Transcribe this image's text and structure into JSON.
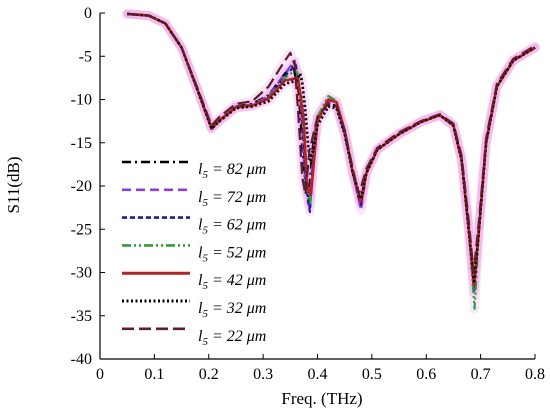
{
  "chart_data": {
    "type": "line",
    "title": "",
    "xlabel": "Freq. (THz)",
    "ylabel": "S11(dB)",
    "xlim": [
      0,
      0.8
    ],
    "ylim": [
      -40,
      0
    ],
    "xticks": [
      "0",
      "0.1",
      "0.2",
      "0.3",
      "0.4",
      "0.5",
      "0.6",
      "0.7",
      "0.8"
    ],
    "yticks": [
      "0",
      "-5",
      "-10",
      "-15",
      "-20",
      "-25",
      "-30",
      "-35",
      "-40"
    ],
    "grid": false,
    "legend_position": "left-middle",
    "series": [
      {
        "name": "l5 = 82 μm",
        "color": "#000000",
        "dash": "dashdot",
        "points": [
          [
            0.05,
            -0.1
          ],
          [
            0.09,
            -0.3
          ],
          [
            0.12,
            -1.2
          ],
          [
            0.15,
            -4.0
          ],
          [
            0.18,
            -9.0
          ],
          [
            0.205,
            -13.4
          ],
          [
            0.22,
            -12.5
          ],
          [
            0.25,
            -10.8
          ],
          [
            0.28,
            -10.5
          ],
          [
            0.31,
            -9.5
          ],
          [
            0.34,
            -7.0
          ],
          [
            0.355,
            -6.0
          ],
          [
            0.365,
            -9.0
          ],
          [
            0.375,
            -18.0
          ],
          [
            0.383,
            -22.0
          ],
          [
            0.39,
            -16.0
          ],
          [
            0.4,
            -12.0
          ],
          [
            0.42,
            -10.3
          ],
          [
            0.435,
            -10.8
          ],
          [
            0.45,
            -14.0
          ],
          [
            0.465,
            -18.5
          ],
          [
            0.478,
            -22.0
          ],
          [
            0.49,
            -18.5
          ],
          [
            0.51,
            -15.8
          ],
          [
            0.55,
            -14.0
          ],
          [
            0.59,
            -12.6
          ],
          [
            0.625,
            -11.8
          ],
          [
            0.65,
            -13.0
          ],
          [
            0.665,
            -17.0
          ],
          [
            0.678,
            -25.0
          ],
          [
            0.688,
            -32.0
          ],
          [
            0.697,
            -25.0
          ],
          [
            0.71,
            -15.0
          ],
          [
            0.73,
            -8.5
          ],
          [
            0.76,
            -5.5
          ],
          [
            0.8,
            -4.0
          ]
        ]
      },
      {
        "name": "l5 = 72 μm",
        "color": "#8a3fd6",
        "dash": "dash",
        "points": [
          [
            0.05,
            -0.1
          ],
          [
            0.09,
            -0.3
          ],
          [
            0.12,
            -1.2
          ],
          [
            0.15,
            -4.0
          ],
          [
            0.18,
            -9.0
          ],
          [
            0.205,
            -13.3
          ],
          [
            0.22,
            -12.4
          ],
          [
            0.25,
            -10.8
          ],
          [
            0.28,
            -10.6
          ],
          [
            0.31,
            -9.6
          ],
          [
            0.34,
            -7.0
          ],
          [
            0.358,
            -5.5
          ],
          [
            0.368,
            -9.5
          ],
          [
            0.377,
            -19.0
          ],
          [
            0.385,
            -22.5
          ],
          [
            0.392,
            -16.0
          ],
          [
            0.4,
            -12.0
          ],
          [
            0.42,
            -10.2
          ],
          [
            0.435,
            -10.6
          ],
          [
            0.45,
            -14.0
          ],
          [
            0.465,
            -18.5
          ],
          [
            0.48,
            -22.8
          ],
          [
            0.49,
            -18.5
          ],
          [
            0.51,
            -15.8
          ],
          [
            0.55,
            -14.0
          ],
          [
            0.59,
            -12.6
          ],
          [
            0.625,
            -11.8
          ],
          [
            0.65,
            -13.0
          ],
          [
            0.665,
            -17.0
          ],
          [
            0.678,
            -25.0
          ],
          [
            0.688,
            -32.5
          ],
          [
            0.697,
            -25.0
          ],
          [
            0.71,
            -15.0
          ],
          [
            0.73,
            -8.5
          ],
          [
            0.76,
            -5.5
          ],
          [
            0.8,
            -4.0
          ]
        ]
      },
      {
        "name": "l5 = 62 μm",
        "color": "#1c1c9c",
        "dash": "shortdash",
        "points": [
          [
            0.05,
            -0.1
          ],
          [
            0.09,
            -0.3
          ],
          [
            0.12,
            -1.2
          ],
          [
            0.15,
            -4.0
          ],
          [
            0.18,
            -9.0
          ],
          [
            0.205,
            -13.3
          ],
          [
            0.22,
            -12.4
          ],
          [
            0.25,
            -10.9
          ],
          [
            0.28,
            -10.7
          ],
          [
            0.31,
            -9.8
          ],
          [
            0.34,
            -7.3
          ],
          [
            0.36,
            -6.0
          ],
          [
            0.37,
            -10.0
          ],
          [
            0.378,
            -19.0
          ],
          [
            0.386,
            -23.0
          ],
          [
            0.393,
            -16.0
          ],
          [
            0.4,
            -12.0
          ],
          [
            0.42,
            -10.0
          ],
          [
            0.435,
            -10.4
          ],
          [
            0.45,
            -13.8
          ],
          [
            0.465,
            -18.5
          ],
          [
            0.48,
            -22.2
          ],
          [
            0.49,
            -18.5
          ],
          [
            0.51,
            -15.8
          ],
          [
            0.55,
            -14.0
          ],
          [
            0.59,
            -12.6
          ],
          [
            0.625,
            -11.8
          ],
          [
            0.65,
            -13.0
          ],
          [
            0.665,
            -17.0
          ],
          [
            0.678,
            -25.0
          ],
          [
            0.688,
            -32.0
          ],
          [
            0.697,
            -25.0
          ],
          [
            0.71,
            -15.0
          ],
          [
            0.73,
            -8.5
          ],
          [
            0.76,
            -5.5
          ],
          [
            0.8,
            -4.0
          ]
        ]
      },
      {
        "name": "l5 = 52 μm",
        "color": "#2e9e3a",
        "dash": "dashdotdot",
        "points": [
          [
            0.05,
            -0.1
          ],
          [
            0.09,
            -0.3
          ],
          [
            0.12,
            -1.2
          ],
          [
            0.15,
            -4.0
          ],
          [
            0.18,
            -9.0
          ],
          [
            0.205,
            -13.3
          ],
          [
            0.22,
            -12.4
          ],
          [
            0.25,
            -10.9
          ],
          [
            0.28,
            -10.7
          ],
          [
            0.31,
            -9.8
          ],
          [
            0.34,
            -7.5
          ],
          [
            0.362,
            -6.5
          ],
          [
            0.372,
            -10.5
          ],
          [
            0.38,
            -19.5
          ],
          [
            0.387,
            -22.0
          ],
          [
            0.394,
            -16.0
          ],
          [
            0.4,
            -12.0
          ],
          [
            0.42,
            -9.6
          ],
          [
            0.435,
            -10.2
          ],
          [
            0.45,
            -13.6
          ],
          [
            0.465,
            -18.5
          ],
          [
            0.48,
            -21.8
          ],
          [
            0.49,
            -18.5
          ],
          [
            0.51,
            -15.8
          ],
          [
            0.55,
            -14.0
          ],
          [
            0.59,
            -12.6
          ],
          [
            0.625,
            -11.8
          ],
          [
            0.65,
            -13.0
          ],
          [
            0.665,
            -17.0
          ],
          [
            0.678,
            -25.0
          ],
          [
            0.689,
            -34.2
          ],
          [
            0.697,
            -25.0
          ],
          [
            0.71,
            -15.0
          ],
          [
            0.73,
            -8.5
          ],
          [
            0.76,
            -5.5
          ],
          [
            0.8,
            -4.0
          ]
        ]
      },
      {
        "name": "l5 = 42 μm",
        "color": "#b22222",
        "dash": "solid",
        "points": [
          [
            0.05,
            -0.1
          ],
          [
            0.09,
            -0.3
          ],
          [
            0.12,
            -1.2
          ],
          [
            0.15,
            -4.0
          ],
          [
            0.18,
            -9.0
          ],
          [
            0.205,
            -13.3
          ],
          [
            0.22,
            -12.4
          ],
          [
            0.25,
            -10.9
          ],
          [
            0.28,
            -10.7
          ],
          [
            0.31,
            -9.9
          ],
          [
            0.34,
            -7.8
          ],
          [
            0.364,
            -7.5
          ],
          [
            0.374,
            -12.0
          ],
          [
            0.381,
            -20.0
          ],
          [
            0.388,
            -21.0
          ],
          [
            0.395,
            -16.0
          ],
          [
            0.4,
            -12.5
          ],
          [
            0.42,
            -10.0
          ],
          [
            0.435,
            -10.3
          ],
          [
            0.45,
            -13.6
          ],
          [
            0.465,
            -18.5
          ],
          [
            0.48,
            -21.8
          ],
          [
            0.49,
            -18.5
          ],
          [
            0.51,
            -15.8
          ],
          [
            0.55,
            -14.0
          ],
          [
            0.59,
            -12.6
          ],
          [
            0.625,
            -11.8
          ],
          [
            0.65,
            -13.0
          ],
          [
            0.665,
            -17.0
          ],
          [
            0.678,
            -25.0
          ],
          [
            0.688,
            -31.5
          ],
          [
            0.697,
            -25.0
          ],
          [
            0.71,
            -15.0
          ],
          [
            0.73,
            -8.5
          ],
          [
            0.76,
            -5.5
          ],
          [
            0.8,
            -4.0
          ]
        ]
      },
      {
        "name": "l5 = 32 μm",
        "color": "#000000",
        "dash": "dot",
        "points": [
          [
            0.05,
            -0.1
          ],
          [
            0.09,
            -0.3
          ],
          [
            0.12,
            -1.2
          ],
          [
            0.15,
            -4.0
          ],
          [
            0.18,
            -9.0
          ],
          [
            0.205,
            -13.4
          ],
          [
            0.22,
            -12.5
          ],
          [
            0.25,
            -11.0
          ],
          [
            0.28,
            -10.8
          ],
          [
            0.31,
            -10.2
          ],
          [
            0.34,
            -8.2
          ],
          [
            0.362,
            -7.8
          ],
          [
            0.368,
            -7.0
          ],
          [
            0.372,
            -8.0
          ],
          [
            0.378,
            -11.5
          ],
          [
            0.383,
            -15.5
          ],
          [
            0.387,
            -17.0
          ],
          [
            0.393,
            -15.5
          ],
          [
            0.4,
            -13.0
          ],
          [
            0.42,
            -10.8
          ],
          [
            0.435,
            -11.0
          ],
          [
            0.45,
            -14.0
          ],
          [
            0.465,
            -18.5
          ],
          [
            0.48,
            -21.5
          ],
          [
            0.49,
            -18.5
          ],
          [
            0.51,
            -15.8
          ],
          [
            0.55,
            -14.0
          ],
          [
            0.59,
            -12.6
          ],
          [
            0.625,
            -11.8
          ],
          [
            0.65,
            -13.0
          ],
          [
            0.665,
            -17.0
          ],
          [
            0.678,
            -25.0
          ],
          [
            0.688,
            -31.0
          ],
          [
            0.697,
            -25.0
          ],
          [
            0.71,
            -15.0
          ],
          [
            0.73,
            -8.5
          ],
          [
            0.76,
            -5.5
          ],
          [
            0.8,
            -4.0
          ]
        ]
      },
      {
        "name": "l5 = 22 μm",
        "color": "#5a1f2a",
        "dash": "longdash",
        "points": [
          [
            0.05,
            -0.1
          ],
          [
            0.09,
            -0.3
          ],
          [
            0.12,
            -1.2
          ],
          [
            0.15,
            -4.0
          ],
          [
            0.18,
            -8.8
          ],
          [
            0.205,
            -13.0
          ],
          [
            0.22,
            -12.0
          ],
          [
            0.25,
            -10.5
          ],
          [
            0.28,
            -10.2
          ],
          [
            0.31,
            -8.5
          ],
          [
            0.335,
            -6.0
          ],
          [
            0.35,
            -4.6
          ],
          [
            0.358,
            -6.0
          ],
          [
            0.365,
            -12.0
          ],
          [
            0.372,
            -19.0
          ],
          [
            0.378,
            -21.0
          ],
          [
            0.385,
            -16.0
          ],
          [
            0.4,
            -12.0
          ],
          [
            0.42,
            -10.5
          ],
          [
            0.435,
            -10.8
          ],
          [
            0.45,
            -13.6
          ],
          [
            0.465,
            -18.0
          ],
          [
            0.476,
            -21.0
          ],
          [
            0.49,
            -18.0
          ],
          [
            0.51,
            -15.6
          ],
          [
            0.55,
            -13.8
          ],
          [
            0.59,
            -12.5
          ],
          [
            0.625,
            -11.7
          ],
          [
            0.65,
            -12.8
          ],
          [
            0.665,
            -16.5
          ],
          [
            0.678,
            -24.0
          ],
          [
            0.687,
            -30.0
          ],
          [
            0.697,
            -24.0
          ],
          [
            0.71,
            -14.5
          ],
          [
            0.73,
            -8.2
          ],
          [
            0.76,
            -5.3
          ],
          [
            0.8,
            -3.8
          ]
        ]
      }
    ]
  },
  "legend": [
    {
      "sym": "l",
      "sub": "5",
      "rest": " = 82 μm"
    },
    {
      "sym": "l",
      "sub": "5",
      "rest": " = 72 μm"
    },
    {
      "sym": "l",
      "sub": "5",
      "rest": " = 62 μm"
    },
    {
      "sym": "l",
      "sub": "5",
      "rest": " = 52 μm"
    },
    {
      "sym": "l",
      "sub": "5",
      "rest": " = 42 μm"
    },
    {
      "sym": "l",
      "sub": "5",
      "rest": " = 32 μm"
    },
    {
      "sym": "l",
      "sub": "5",
      "rest": " = 22 μm"
    }
  ]
}
